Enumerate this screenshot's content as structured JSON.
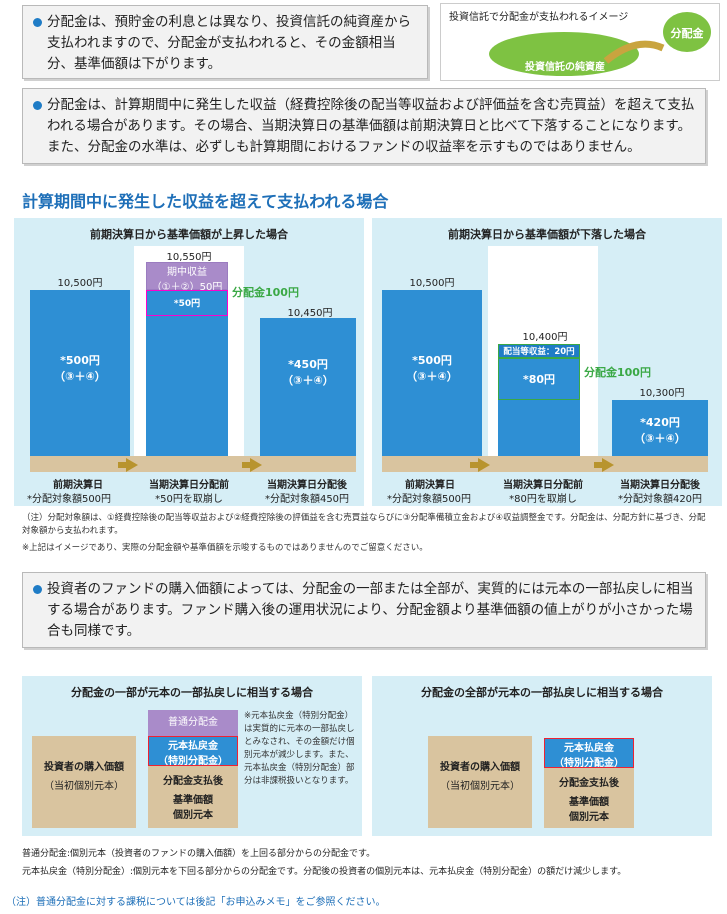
{
  "notes": {
    "n1": "分配金は、預貯金の利息とは異なり、投資信託の純資産から支払われますので、分配金が支払われると、その金額相当分、基準価額は下がります。",
    "n2": "分配金は、計算期間中に発生した収益（経費控除後の配当等収益および評価益を含む売買益）を超えて支払われる場合があります。その場合、当期決算日の基準価額は前期決算日と比べて下落することになります。また、分配金の水準は、必ずしも計算期間におけるファンドの収益率を示すものではありません。",
    "n3": "投資者のファンドの購入価額によっては、分配金の一部または全部が、実質的には元本の一部払戻しに相当する場合があります。ファンド購入後の運用状況により、分配金額より基準価額の値上がりが小さかった場合も同様です。"
  },
  "image_box": {
    "title": "投資信託で分配金が支払われるイメージ",
    "fund_label": "投資信託の純資産",
    "dist_label": "分配金"
  },
  "section_heading": "計算期間中に発生した収益を超えて支払われる場合",
  "left_panel": {
    "title": "前期決算日から基準価額が上昇した場合",
    "v1": "10,500円",
    "v2": "10,550円",
    "v3": "10,450円",
    "bar1": "*500円",
    "bar1b": "（③＋④）",
    "income": "期中収益",
    "income_b": "（①＋②）50円",
    "mid": "*50円",
    "dist": "分配金100円",
    "bar3": "*450円",
    "bar3b": "（③＋④）",
    "c1": "前期決算日",
    "c1b": "*分配対象額500円",
    "c2": "当期決算日分配前",
    "c2b": "*50円を取崩し",
    "c3": "当期決算日分配後",
    "c3b": "*分配対象額450円"
  },
  "right_panel": {
    "title": "前期決算日から基準価額が下落した場合",
    "v1": "10,500円",
    "v2": "10,400円",
    "v3": "10,300円",
    "bar1": "*500円",
    "bar1b": "（③＋④）",
    "income": "配当等収益：20円",
    "mid": "*80円",
    "dist": "分配金100円",
    "bar3": "*420円",
    "bar3b": "（③＋④）",
    "c1": "前期決算日",
    "c1b": "*分配対象額500円",
    "c2": "当期決算日分配前",
    "c2b": "*80円を取崩し",
    "c3": "当期決算日分配後",
    "c3b": "*分配対象額420円"
  },
  "footnote1": "（注）分配対象額は、①経費控除後の配当等収益および②経費控除後の評価益を含む売買益ならびに③分配準備積立金および④収益調整金です。分配金は、分配方針に基づき、分配対象額から支払われます。",
  "footnote2": "※上記はイメージであり、実際の分配金額や基準価額を示唆するものではありませんのでご留意ください。",
  "bottom_left": {
    "title": "分配金の一部が元本の一部払戻しに相当する場合",
    "normal": "普通分配金",
    "refund": "元本払戻金",
    "refund_b": "（特別分配金）",
    "buy": "投資者の購入価額",
    "buy_b": "（当初個別元本）",
    "after": "分配金支払後",
    "after_b": "基準価額",
    "after_c": "個別元本",
    "side_note": "※元本払戻金（特別分配金）は実質的に元本の一部払戻しとみなされ、その金額だけ個別元本が減少します。また、元本払戻金（特別分配金）部分は非課税扱いとなります。"
  },
  "bottom_right": {
    "title": "分配金の全部が元本の一部払戻しに相当する場合",
    "refund": "元本払戻金",
    "refund_b": "（特別分配金）",
    "buy": "投資者の購入価額",
    "buy_b": "（当初個別元本）",
    "after": "分配金支払後",
    "after_b": "基準価額",
    "after_c": "個別元本"
  },
  "def1": "普通分配金:個別元本（投資者のファンドの購入価額）を上回る部分からの分配金です。",
  "def2": "元本払戻金（特別分配金）:個別元本を下回る部分からの分配金です。分配後の投資者の個別元本は、元本払戻金（特別分配金）の額だけ減少します。",
  "final_note": "（注）普通分配金に対する課税については後記「お申込みメモ」をご参照ください。"
}
